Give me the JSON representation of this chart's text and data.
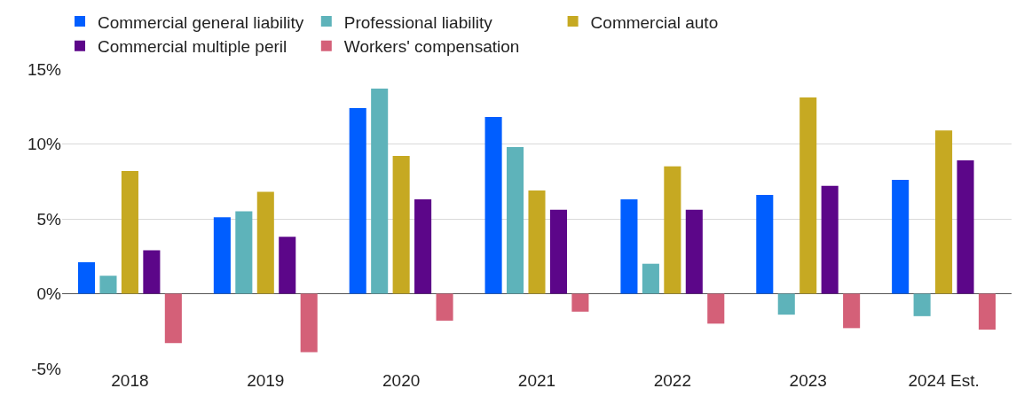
{
  "chart_data": {
    "type": "bar",
    "categories": [
      "2018",
      "2019",
      "2020",
      "2021",
      "2022",
      "2023",
      "2024 Est."
    ],
    "series": [
      {
        "name": "Commercial general liability",
        "color": "#005eff",
        "values": [
          2.1,
          5.1,
          12.4,
          11.8,
          6.3,
          6.6,
          7.6
        ]
      },
      {
        "name": "Professional liability",
        "color": "#5eb3ba",
        "values": [
          1.2,
          5.5,
          13.7,
          9.8,
          2.0,
          -1.4,
          -1.5
        ]
      },
      {
        "name": "Commercial auto",
        "color": "#c6a922",
        "values": [
          8.2,
          6.8,
          9.2,
          6.9,
          8.5,
          13.1,
          10.9
        ]
      },
      {
        "name": "Commercial multiple peril",
        "color": "#5c0689",
        "values": [
          2.9,
          3.8,
          6.3,
          5.6,
          5.6,
          7.2,
          8.9
        ]
      },
      {
        "name": "Workers' compensation",
        "color": "#d46078",
        "values": [
          -3.3,
          -3.9,
          -1.8,
          -1.2,
          -2.0,
          -2.3,
          -2.4
        ]
      }
    ],
    "ylim": [
      -5,
      15
    ],
    "yticks": [
      {
        "value": -5,
        "label": "-5%"
      },
      {
        "value": 0,
        "label": "0%"
      },
      {
        "value": 5,
        "label": "5%"
      },
      {
        "value": 10,
        "label": "10%"
      },
      {
        "value": 15,
        "label": "15%"
      }
    ],
    "grid": "y",
    "legend": "top left"
  }
}
